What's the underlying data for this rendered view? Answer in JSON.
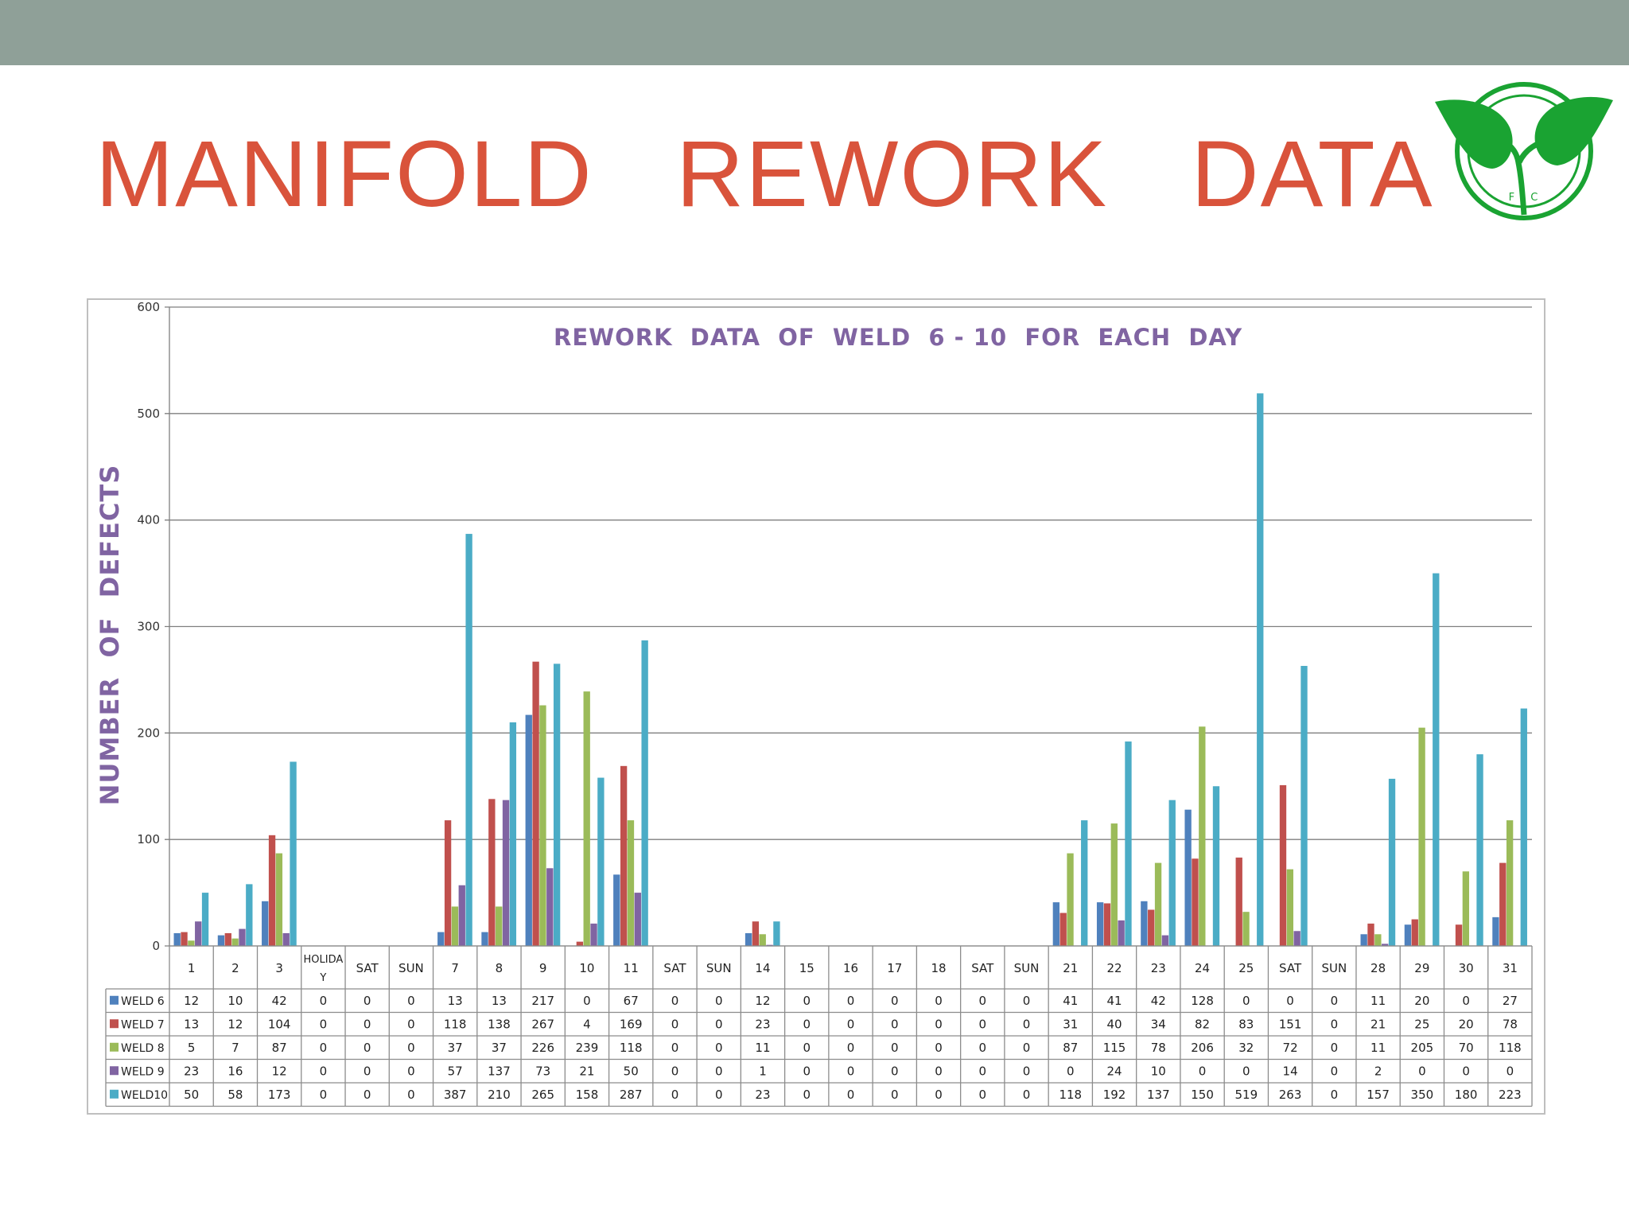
{
  "slide": {
    "title": "MANIFOLD   REWORK   DATA",
    "top_band_color": "#8fa098",
    "title_color": "#d9533b",
    "logo": {
      "icon": "leaf-circle-logo",
      "text": "F I C",
      "color": "#1aa332"
    }
  },
  "chart_data": {
    "type": "bar",
    "title": "REWORK  DATA  OF  WELD  6 - 10  FOR  EACH  DAY",
    "xlabel": "",
    "ylabel": "NUMBER  OF  DEFECTS",
    "ylim": [
      0,
      600
    ],
    "yticks": [
      0,
      100,
      200,
      300,
      400,
      500,
      600
    ],
    "grid": true,
    "legend": "data-table-left",
    "categories": [
      "1",
      "2",
      "3",
      "HOLIDAY",
      "SAT",
      "SUN",
      "7",
      "8",
      "9",
      "10",
      "11",
      "SAT",
      "SUN",
      "14",
      "15",
      "16",
      "17",
      "18",
      "SAT",
      "SUN",
      "21",
      "22",
      "23",
      "24",
      "25",
      "SAT",
      "SUN",
      "28",
      "29",
      "30",
      "31"
    ],
    "series": [
      {
        "name": "WELD 6",
        "color": "#4f81bd",
        "values": [
          12,
          10,
          42,
          0,
          0,
          0,
          13,
          13,
          217,
          0,
          67,
          0,
          0,
          12,
          0,
          0,
          0,
          0,
          0,
          0,
          41,
          41,
          42,
          128,
          0,
          0,
          0,
          11,
          20,
          0,
          27
        ]
      },
      {
        "name": "WELD 7",
        "color": "#c0504d",
        "values": [
          13,
          12,
          104,
          0,
          0,
          0,
          118,
          138,
          267,
          4,
          169,
          0,
          0,
          23,
          0,
          0,
          0,
          0,
          0,
          0,
          31,
          40,
          34,
          82,
          83,
          151,
          0,
          21,
          25,
          20,
          78
        ]
      },
      {
        "name": "WELD 8",
        "color": "#9bbb59",
        "values": [
          5,
          7,
          87,
          0,
          0,
          0,
          37,
          37,
          226,
          239,
          118,
          0,
          0,
          11,
          0,
          0,
          0,
          0,
          0,
          0,
          87,
          115,
          78,
          206,
          32,
          72,
          0,
          11,
          205,
          70,
          118
        ]
      },
      {
        "name": "WELD 9",
        "color": "#8064a2",
        "values": [
          23,
          16,
          12,
          0,
          0,
          0,
          57,
          137,
          73,
          21,
          50,
          0,
          0,
          1,
          0,
          0,
          0,
          0,
          0,
          0,
          0,
          24,
          10,
          0,
          0,
          14,
          0,
          2,
          0,
          0,
          0
        ]
      },
      {
        "name": "WELD10",
        "color": "#4bacc6",
        "values": [
          50,
          58,
          173,
          0,
          0,
          0,
          387,
          210,
          265,
          158,
          287,
          0,
          0,
          23,
          0,
          0,
          0,
          0,
          0,
          0,
          118,
          192,
          137,
          150,
          519,
          263,
          0,
          157,
          350,
          180,
          223
        ]
      }
    ]
  }
}
